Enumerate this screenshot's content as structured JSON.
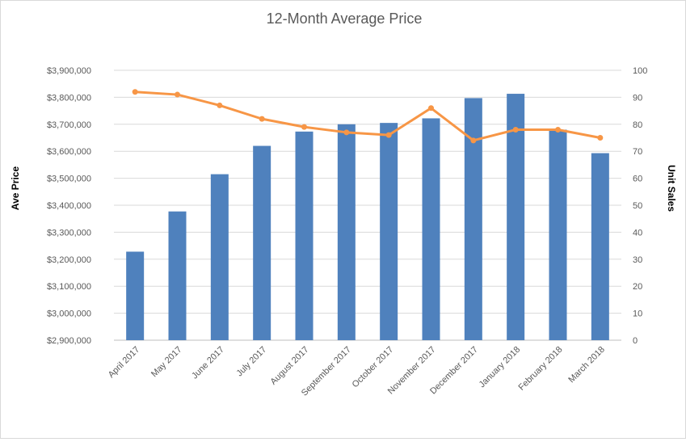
{
  "chart_data": {
    "type": "bar",
    "title": "12-Month Average Price",
    "ylabel": "Ave Price",
    "y2label": "Unit Sales",
    "xlabel": "",
    "categories": [
      "April 2017",
      "May 2017",
      "June 2017",
      "July 2017",
      "August 2017",
      "September 2017",
      "October 2017",
      "November 2017",
      "December 2017",
      "January 2018",
      "February 2018",
      "March 2018"
    ],
    "ylim": [
      2900000,
      3900000
    ],
    "y2lim": [
      0,
      100
    ],
    "yticks": [
      "$2,900,000",
      "$3,000,000",
      "$3,100,000",
      "$3,200,000",
      "$3,300,000",
      "$3,400,000",
      "$3,500,000",
      "$3,600,000",
      "$3,700,000",
      "$3,800,000",
      "$3,900,000"
    ],
    "y2ticks": [
      "0",
      "10",
      "20",
      "30",
      "40",
      "50",
      "60",
      "70",
      "80",
      "90",
      "100"
    ],
    "grid": true,
    "series": [
      {
        "type": "bar",
        "axis": "left",
        "color": "#4f81bd",
        "values": [
          3228000,
          3377000,
          3515000,
          3620000,
          3673000,
          3700000,
          3705000,
          3722000,
          3797000,
          3813000,
          3680000,
          3593000
        ]
      },
      {
        "type": "line",
        "axis": "right",
        "color": "#f79646",
        "values": [
          92,
          91,
          87,
          82,
          79,
          77,
          76,
          86,
          74,
          78,
          78,
          75
        ]
      }
    ]
  }
}
